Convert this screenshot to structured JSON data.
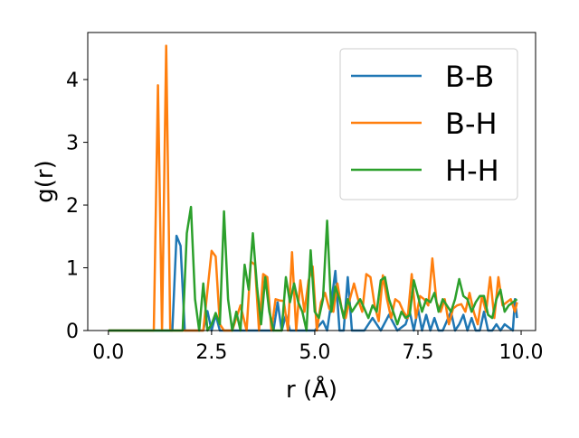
{
  "chart_data": {
    "type": "line",
    "title": "",
    "xlabel": "r (Å)",
    "ylabel": "g(r)",
    "xlim": [
      -0.5,
      10.35
    ],
    "ylim": [
      0,
      4.75
    ],
    "xticks": [
      0.0,
      2.5,
      5.0,
      7.5,
      10.0
    ],
    "xtick_labels": [
      "0.0",
      "2.5",
      "5.0",
      "7.5",
      "10.0"
    ],
    "yticks": [
      0,
      1,
      2,
      3,
      4
    ],
    "ytick_labels": [
      "0",
      "1",
      "2",
      "3",
      "4"
    ],
    "grid": false,
    "legend_position": "top-right",
    "series": [
      {
        "name": "B-B",
        "color": "#1f77b4",
        "x": [
          0.0,
          1.4,
          1.5,
          1.55,
          1.65,
          1.75,
          1.85,
          2.0,
          2.3,
          2.4,
          2.5,
          2.6,
          2.7,
          2.8,
          3.0,
          3.5,
          4.0,
          4.1,
          4.2,
          4.3,
          4.4,
          4.6,
          4.8,
          5.0,
          5.2,
          5.3,
          5.4,
          5.5,
          5.6,
          5.7,
          5.8,
          5.9,
          6.0,
          6.2,
          6.4,
          6.6,
          6.8,
          7.0,
          7.2,
          7.3,
          7.4,
          7.5,
          7.6,
          7.7,
          7.8,
          7.9,
          8.0,
          8.1,
          8.2,
          8.3,
          8.4,
          8.5,
          8.6,
          8.7,
          8.8,
          8.9,
          9.0,
          9.1,
          9.2,
          9.3,
          9.4,
          9.5,
          9.6,
          9.7,
          9.8,
          9.85,
          9.9
        ],
        "y": [
          0,
          0,
          0,
          0,
          1.51,
          1.35,
          0,
          0,
          0,
          0.31,
          0,
          0.25,
          0,
          0,
          0,
          0,
          0,
          0.45,
          0,
          0.25,
          0,
          0,
          0,
          0,
          0.15,
          0,
          0.45,
          0.95,
          0,
          0,
          0.85,
          0,
          0,
          0,
          0.2,
          0,
          0.25,
          0,
          0.1,
          0.3,
          0,
          0.35,
          0,
          0.25,
          0,
          0.2,
          0,
          0,
          0.15,
          0.3,
          0,
          0.1,
          0.25,
          0,
          0.2,
          0,
          0,
          0.3,
          0,
          0,
          0.1,
          0,
          0.1,
          0.05,
          0,
          0.5,
          0.2
        ]
      },
      {
        "name": "B-H",
        "color": "#ff7f0e",
        "x": [
          0.0,
          1.0,
          1.1,
          1.2,
          1.3,
          1.4,
          1.5,
          2.3,
          2.5,
          2.6,
          2.7,
          2.8,
          3.0,
          3.2,
          3.35,
          3.45,
          3.55,
          3.65,
          3.75,
          3.85,
          3.95,
          4.05,
          4.15,
          4.25,
          4.35,
          4.45,
          4.55,
          4.65,
          4.75,
          4.85,
          4.95,
          5.05,
          5.15,
          5.25,
          5.35,
          5.45,
          5.55,
          5.65,
          5.75,
          5.85,
          5.95,
          6.05,
          6.15,
          6.25,
          6.35,
          6.45,
          6.55,
          6.65,
          6.75,
          6.85,
          6.95,
          7.05,
          7.15,
          7.25,
          7.35,
          7.45,
          7.55,
          7.65,
          7.75,
          7.85,
          7.95,
          8.05,
          8.15,
          8.25,
          8.35,
          8.45,
          8.55,
          8.65,
          8.75,
          8.85,
          8.95,
          9.05,
          9.15,
          9.25,
          9.35,
          9.45,
          9.55,
          9.65,
          9.75,
          9.85,
          9.9
        ],
        "y": [
          0,
          0,
          0,
          3.91,
          0,
          4.54,
          0,
          0,
          1.27,
          1.18,
          0.1,
          0,
          0,
          0.4,
          0,
          1.1,
          1.05,
          0,
          0.9,
          0.85,
          0,
          0.5,
          0.48,
          0.47,
          0,
          1.25,
          0,
          0.8,
          0.3,
          0.8,
          1.02,
          0,
          0.45,
          0.6,
          0.35,
          0.3,
          0.75,
          0.35,
          0.2,
          0.5,
          0.75,
          0.5,
          0.3,
          0.9,
          0.85,
          0.4,
          0.15,
          0.88,
          0.5,
          0.2,
          0.5,
          0.45,
          0.3,
          0.2,
          0.9,
          0.2,
          0.55,
          0.5,
          0.4,
          1.15,
          0.45,
          0.3,
          0.5,
          0.1,
          0.35,
          0.4,
          0.42,
          0.3,
          0.6,
          0.3,
          0.1,
          0.55,
          0.3,
          0.85,
          0.2,
          0.85,
          0.4,
          0.45,
          0.5,
          0.3,
          0.45
        ]
      },
      {
        "name": "H-H",
        "color": "#2ca02c",
        "x": [
          0.0,
          1.8,
          1.9,
          2.0,
          2.1,
          2.2,
          2.3,
          2.4,
          2.5,
          2.6,
          2.7,
          2.8,
          2.9,
          3.0,
          3.1,
          3.2,
          3.3,
          3.4,
          3.5,
          3.6,
          3.7,
          3.8,
          3.9,
          4.0,
          4.1,
          4.2,
          4.3,
          4.4,
          4.5,
          4.6,
          4.7,
          4.8,
          4.9,
          5.0,
          5.1,
          5.2,
          5.3,
          5.4,
          5.5,
          5.6,
          5.7,
          5.8,
          5.9,
          6.0,
          6.1,
          6.2,
          6.3,
          6.4,
          6.5,
          6.6,
          6.7,
          6.8,
          6.9,
          7.0,
          7.1,
          7.2,
          7.3,
          7.4,
          7.5,
          7.6,
          7.7,
          7.8,
          7.9,
          8.0,
          8.1,
          8.2,
          8.3,
          8.4,
          8.5,
          8.6,
          8.7,
          8.8,
          8.9,
          9.0,
          9.1,
          9.2,
          9.3,
          9.4,
          9.5,
          9.6,
          9.7,
          9.8,
          9.9
        ],
        "y": [
          0,
          0,
          1.55,
          1.97,
          0.5,
          0,
          0.75,
          0,
          0.1,
          0.28,
          0.1,
          1.9,
          0.5,
          0,
          0.3,
          0,
          1.05,
          0.65,
          1.55,
          0.7,
          0.1,
          0.85,
          0.3,
          0,
          0,
          0,
          0.85,
          0.45,
          0.75,
          0.45,
          0.3,
          0,
          1.28,
          0.3,
          0.2,
          0.5,
          1.75,
          0.3,
          0.7,
          0.5,
          0.2,
          0.5,
          0.3,
          0.4,
          0.5,
          0.35,
          0.2,
          0.4,
          0.3,
          0.8,
          0.85,
          0.5,
          0.3,
          0.1,
          0.3,
          0.2,
          0.25,
          0.8,
          0.55,
          0.3,
          0.5,
          0.45,
          0.6,
          0.3,
          0.5,
          0.4,
          0.3,
          0.5,
          0.82,
          0.55,
          0.5,
          0.3,
          0.45,
          0.55,
          0.55,
          0.25,
          0.2,
          0.5,
          0.65,
          0.3,
          0.4,
          0.45,
          0.5
        ]
      }
    ]
  }
}
